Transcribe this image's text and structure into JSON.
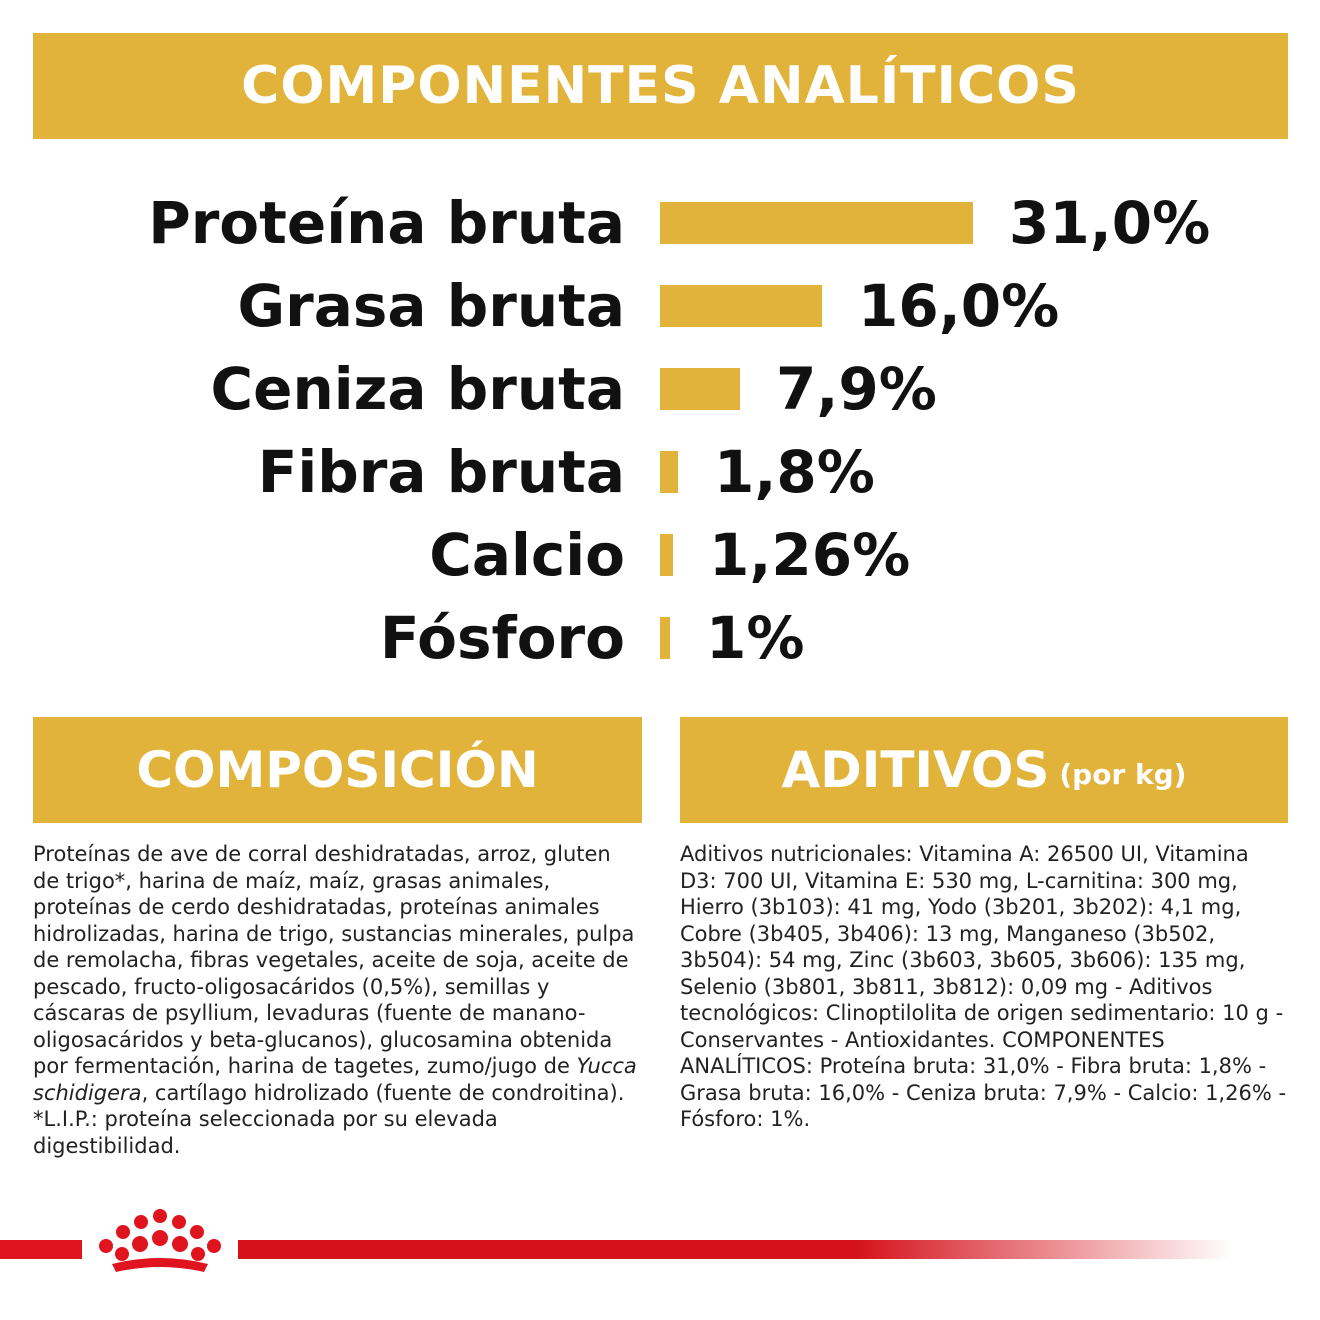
{
  "header": {
    "title": "COMPONENTES ANALÍTICOS"
  },
  "analytics": [
    {
      "label": "Proteína bruta",
      "value_text": "31,0%",
      "value": 31.0
    },
    {
      "label": "Grasa bruta",
      "value_text": "16,0%",
      "value": 16.0
    },
    {
      "label": "Ceniza bruta",
      "value_text": "7,9%",
      "value": 7.9
    },
    {
      "label": "Fibra bruta",
      "value_text": "1,8%",
      "value": 1.8
    },
    {
      "label": "Calcio",
      "value_text": "1,26%",
      "value": 1.26
    },
    {
      "label": "Fósforo",
      "value_text": "1%",
      "value": 1
    }
  ],
  "composition": {
    "title": "COMPOSICIÓN",
    "text_before": "Proteínas de ave de corral deshidratadas, arroz, gluten de trigo*, harina de maíz, maíz, grasas animales, proteínas de cerdo deshidratadas, proteínas animales hidrolizadas, harina de trigo, sustancias minerales, pulpa de remolacha, fibras vegetales, aceite de soja, aceite de pescado, fructo-oligosacáridos (0,5%), semillas y cáscaras de psyllium, levaduras (fuente de manano-oligosacáridos y beta-glucanos), glucosamina obtenida por fermentación, harina de tagetes, zumo/jugo de ",
    "text_italic": "Yucca schidigera",
    "text_after": ", cartílago hidrolizado (fuente de condroitina). *L.I.P.: proteína seleccionada por su elevada digestibilidad."
  },
  "additives": {
    "title": "ADITIVOS",
    "subtitle": "(por kg)",
    "text": "Aditivos nutricionales: Vitamina A: 26500 UI, Vitamina D3: 700 UI, Vitamina E: 530 mg, L-carnitina: 300 mg, Hierro (3b103): 41 mg, Yodo (3b201, 3b202): 4,1 mg, Cobre (3b405, 3b406): 13 mg, Manganeso (3b502, 3b504): 54 mg, Zinc (3b603, 3b605, 3b606): 135 mg, Selenio (3b801, 3b811, 3b812): 0,09 mg - Aditivos tecnológicos: Clinoptilolita de origen sedimentario: 10 g - Conservantes - Antioxidantes. COMPONENTES ANALÍTICOS: Proteína bruta: 31,0% - Fibra bruta: 1,8% - Grasa bruta: 16,0% - Ceniza bruta: 7,9% - Calcio: 1,26% - Fósforo: 1%."
  },
  "colors": {
    "gold": "#e2b33b",
    "red": "#d5111b",
    "text": "#111111"
  },
  "brand": {
    "logo_icon": "royal-canin-crown-icon"
  }
}
